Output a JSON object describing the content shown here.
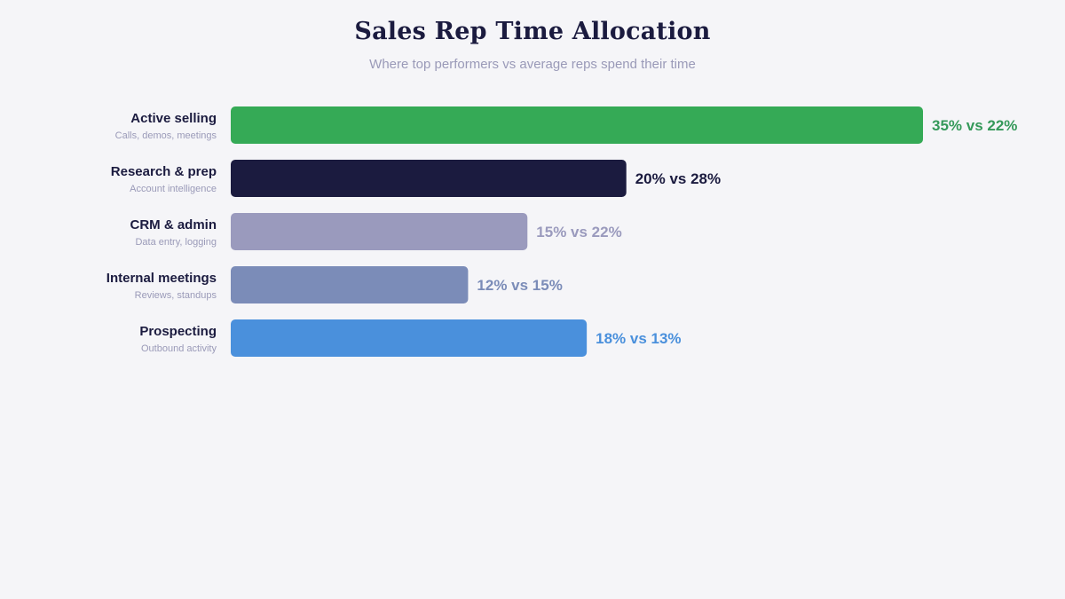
{
  "chart_data": {
    "type": "bar",
    "orientation": "horizontal",
    "title": "Sales Rep Time Allocation",
    "subtitle": "Where top performers vs average reps spend their time",
    "categories": [
      "Active selling",
      "Research & prep",
      "CRM & admin",
      "Internal meetings",
      "Prospecting"
    ],
    "category_descriptions": [
      "Calls, demos, meetings",
      "Account intelligence",
      "Data entry, logging",
      "Reviews, standups",
      "Outbound activity"
    ],
    "series": [
      {
        "values": [
          35,
          20,
          15,
          12,
          18
        ]
      },
      {
        "values": [
          22,
          28,
          22,
          15,
          13
        ]
      }
    ],
    "bar_series_index": 0,
    "data_labels": [
      "35% vs 22%",
      "20% vs 28%",
      "15% vs 22%",
      "12% vs 15%",
      "18% vs 13%"
    ],
    "xlim": [
      0,
      35
    ],
    "grid": false,
    "legend": "none",
    "colors": [
      "#35aa56",
      "#1b1b3f",
      "#9a9abd",
      "#7b8cb8",
      "#4a90dc"
    ],
    "label_colors": [
      "#35995a",
      "#1b1b3f",
      "#9a9abd",
      "#7b8cb8",
      "#4a90dc"
    ]
  }
}
